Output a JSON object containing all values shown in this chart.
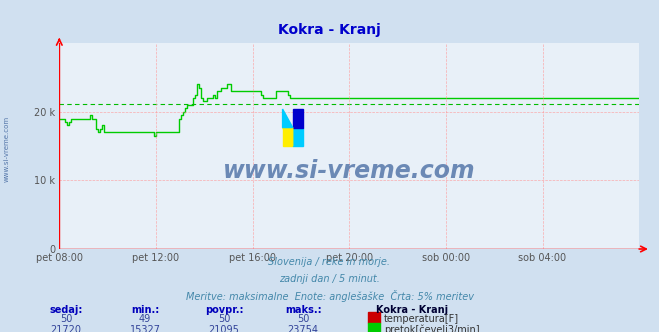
{
  "title": "Kokra - Kranj",
  "title_color": "#0000cc",
  "bg_color": "#d0e0f0",
  "plot_bg_color": "#e8f0f8",
  "grid_color": "#ff9999",
  "x_labels": [
    "pet 08:00",
    "pet 12:00",
    "pet 16:00",
    "pet 20:00",
    "sob 00:00",
    "sob 04:00"
  ],
  "x_ticks_norm": [
    0.0,
    0.1667,
    0.3333,
    0.5,
    0.6667,
    0.8333
  ],
  "ylim": [
    0,
    30000
  ],
  "yticks": [
    0,
    10000,
    20000
  ],
  "ylabel_labels": [
    "0",
    "10 k",
    "20 k"
  ],
  "avg_line_value": 21095,
  "avg_line_color": "#00bb00",
  "flow_line_color": "#00cc00",
  "temp_line_color": "#cc0000",
  "watermark_text": "www.si-vreme.com",
  "watermark_color": "#5577aa",
  "subtitle1": "Slovenija / reke in morje.",
  "subtitle2": "zadnji dan / 5 minut.",
  "subtitle3": "Meritve: maksimalne  Enote: anglešaške  Črta: 5% meritev",
  "subtitle_color": "#4488aa",
  "table_header_color": "#0000bb",
  "table_value_color": "#334499",
  "legend_title": "Kokra - Kranj",
  "legend_title_color": "#000033",
  "temp_color_box": "#cc0000",
  "flow_color_box": "#00cc00",
  "left_label": "www.si-vreme.com",
  "left_label_color": "#5577aa",
  "flow_data": [
    19000,
    19000,
    19000,
    18500,
    18000,
    18500,
    19000,
    19000,
    19000,
    19000,
    19000,
    19000,
    19000,
    19000,
    19000,
    19500,
    19000,
    19000,
    17500,
    17000,
    17500,
    18000,
    17000,
    17000,
    17000,
    17000,
    17000,
    17000,
    17000,
    17000,
    17000,
    17000,
    17000,
    17000,
    17000,
    17000,
    17000,
    17000,
    17000,
    17000,
    17000,
    17000,
    17000,
    17000,
    17000,
    17000,
    17000,
    16500,
    17000,
    17000,
    17000,
    17000,
    17000,
    17000,
    17000,
    17000,
    17000,
    17000,
    17000,
    19000,
    19500,
    20000,
    20500,
    21000,
    21000,
    21000,
    22000,
    22500,
    24000,
    23500,
    22000,
    21500,
    21500,
    22000,
    22000,
    22000,
    22500,
    22000,
    23000,
    23000,
    23500,
    23500,
    23500,
    24000,
    24000,
    23000,
    23000,
    23000,
    23000,
    23000,
    23000,
    23000,
    23000,
    23000,
    23000,
    23000,
    23000,
    23000,
    23000,
    23000,
    22500,
    22000,
    22000,
    22000,
    22000,
    22000,
    22000,
    23000,
    23000,
    23000,
    23000,
    23000,
    23000,
    22500,
    22000,
    22000,
    22000,
    22000,
    22000,
    22000,
    22000,
    22000,
    22000,
    22000,
    22000,
    22000,
    22000,
    22000,
    22000,
    22000,
    22000,
    22000,
    22000,
    22000,
    22000,
    22000,
    22000,
    22000,
    22000,
    22000,
    22000,
    22000,
    22000,
    22000,
    22000,
    22000,
    22000,
    22000,
    22000,
    22000,
    22000,
    22000,
    22000,
    22000,
    22000,
    22000,
    22000,
    22000,
    22000,
    22000,
    22000,
    22000,
    22000,
    22000,
    22000,
    22000,
    22000,
    22000,
    22000,
    22000,
    22000,
    22000,
    22000,
    22000,
    22000,
    22000,
    22000,
    22000,
    22000,
    22000,
    22000,
    22000,
    22000,
    22000,
    22000,
    22000,
    22000,
    22000,
    22000,
    22000,
    22000,
    22000,
    22000,
    22000,
    22000,
    22000,
    22000,
    22000,
    22000,
    22000,
    22000,
    22000,
    22000,
    22000,
    22000,
    22000,
    22000,
    22000,
    22000,
    22000,
    22000,
    22000,
    22000,
    22000,
    22000,
    22000,
    22000,
    22000,
    22000,
    22000,
    22000,
    22000,
    22000,
    22000,
    22000,
    22000,
    22000,
    22000,
    22000,
    22000,
    22000,
    22000,
    22000,
    22000,
    22000,
    22000,
    22000,
    22000,
    22000,
    22000,
    22000,
    22000,
    22000,
    22000,
    22000,
    22000,
    22000,
    22000,
    22000,
    22000,
    22000,
    22000,
    22000,
    22000,
    22000,
    22000,
    22000,
    22000,
    22000,
    22000,
    22000,
    22000,
    22000,
    22000,
    22000,
    22000,
    22000,
    22000,
    22000,
    22000,
    22000,
    22000,
    22000,
    22000,
    22000,
    22000,
    22000,
    22000,
    22000,
    22000,
    22000,
    22000,
    22000,
    22000,
    22000,
    22000,
    22000,
    22000
  ],
  "n_points": 288,
  "logo_yellow": "#ffee00",
  "logo_cyan": "#00ccff",
  "logo_blue": "#0000cc"
}
